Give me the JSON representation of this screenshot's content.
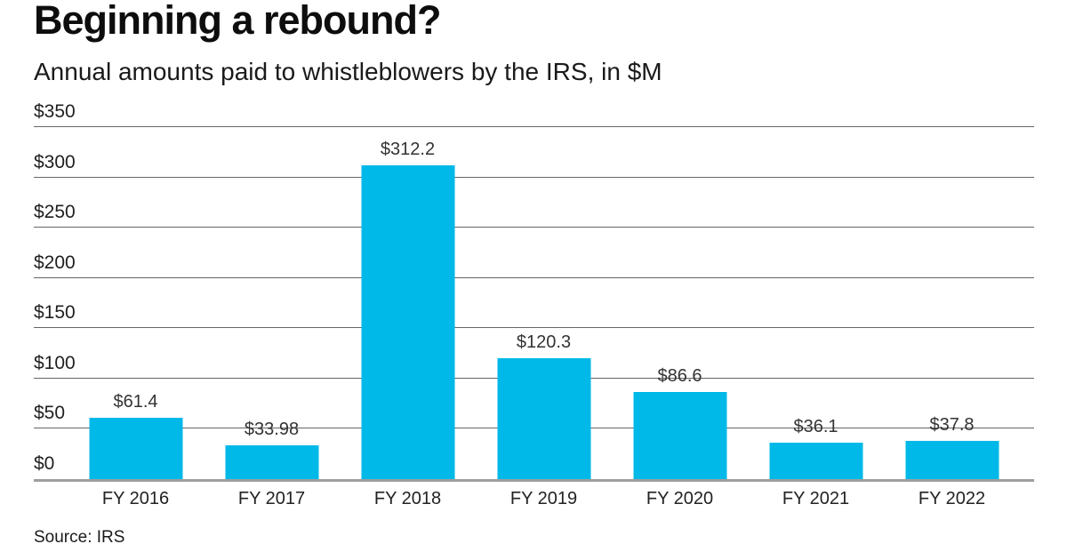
{
  "header": {
    "title": "Beginning a rebound?",
    "subtitle": "Annual amounts paid to whistleblowers by the IRS, in $M"
  },
  "chart_data": {
    "type": "bar",
    "title": "Beginning a rebound?",
    "subtitle": "Annual amounts paid to whistleblowers by the IRS, in $M",
    "categories": [
      "FY 2016",
      "FY 2017",
      "FY 2018",
      "FY 2019",
      "FY 2020",
      "FY 2021",
      "FY 2022"
    ],
    "values": [
      61.4,
      33.98,
      312.2,
      120.3,
      86.6,
      36.1,
      37.8
    ],
    "value_labels": [
      "$61.4",
      "$33.98",
      "$312.2",
      "$120.3",
      "$86.6",
      "$36.1",
      "$37.8"
    ],
    "xlabel": "",
    "ylabel": "",
    "ylim": [
      0,
      350
    ],
    "yticks": [
      0,
      50,
      100,
      150,
      200,
      250,
      300,
      350
    ],
    "ytick_labels": [
      "$0",
      "$50",
      "$100",
      "$150",
      "$200",
      "$250",
      "$300",
      "$350"
    ],
    "grid": true,
    "legend_position": "none",
    "colors": {
      "bar": "#00b9e8",
      "gridline": "#666666",
      "axis_line": "#9e9e9e",
      "value_label": "#333333",
      "tick_label": "#1f1f1f"
    }
  },
  "footer": {
    "source": "Source: IRS"
  }
}
